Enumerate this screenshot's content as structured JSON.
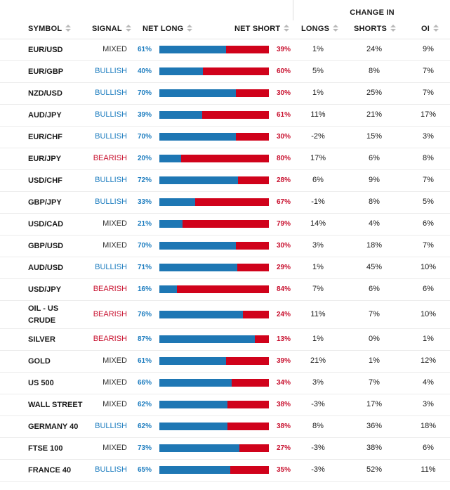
{
  "headers": {
    "change_in": "CHANGE IN",
    "symbol": "SYMBOL",
    "signal": "SIGNAL",
    "net_long": "NET LONG",
    "net_short": "NET SHORT",
    "longs": "LONGS",
    "shorts": "SHORTS",
    "oi": "OI"
  },
  "colors": {
    "long": "#1e77b4",
    "short": "#d0021b",
    "bullish": "#1c7cbf",
    "bearish": "#c8102e",
    "mixed": "#333333"
  },
  "rows": [
    {
      "symbol": "EUR/USD",
      "signal": "MIXED",
      "long_pct": "61%",
      "short_pct": "39%",
      "long_value": 61,
      "longs": "1%",
      "shorts": "24%",
      "oi": "9%"
    },
    {
      "symbol": "EUR/GBP",
      "signal": "BULLISH",
      "long_pct": "40%",
      "short_pct": "60%",
      "long_value": 40,
      "longs": "5%",
      "shorts": "8%",
      "oi": "7%"
    },
    {
      "symbol": "NZD/USD",
      "signal": "BULLISH",
      "long_pct": "70%",
      "short_pct": "30%",
      "long_value": 70,
      "longs": "1%",
      "shorts": "25%",
      "oi": "7%"
    },
    {
      "symbol": "AUD/JPY",
      "signal": "BULLISH",
      "long_pct": "39%",
      "short_pct": "61%",
      "long_value": 39,
      "longs": "11%",
      "shorts": "21%",
      "oi": "17%"
    },
    {
      "symbol": "EUR/CHF",
      "signal": "BULLISH",
      "long_pct": "70%",
      "short_pct": "30%",
      "long_value": 70,
      "longs": "-2%",
      "shorts": "15%",
      "oi": "3%"
    },
    {
      "symbol": "EUR/JPY",
      "signal": "BEARISH",
      "long_pct": "20%",
      "short_pct": "80%",
      "long_value": 20,
      "longs": "17%",
      "shorts": "6%",
      "oi": "8%"
    },
    {
      "symbol": "USD/CHF",
      "signal": "BULLISH",
      "long_pct": "72%",
      "short_pct": "28%",
      "long_value": 72,
      "longs": "6%",
      "shorts": "9%",
      "oi": "7%"
    },
    {
      "symbol": "GBP/JPY",
      "signal": "BULLISH",
      "long_pct": "33%",
      "short_pct": "67%",
      "long_value": 33,
      "longs": "-1%",
      "shorts": "8%",
      "oi": "5%"
    },
    {
      "symbol": "USD/CAD",
      "signal": "MIXED",
      "long_pct": "21%",
      "short_pct": "79%",
      "long_value": 21,
      "longs": "14%",
      "shorts": "4%",
      "oi": "6%"
    },
    {
      "symbol": "GBP/USD",
      "signal": "MIXED",
      "long_pct": "70%",
      "short_pct": "30%",
      "long_value": 70,
      "longs": "3%",
      "shorts": "18%",
      "oi": "7%"
    },
    {
      "symbol": "AUD/USD",
      "signal": "BULLISH",
      "long_pct": "71%",
      "short_pct": "29%",
      "long_value": 71,
      "longs": "1%",
      "shorts": "45%",
      "oi": "10%"
    },
    {
      "symbol": "USD/JPY",
      "signal": "BEARISH",
      "long_pct": "16%",
      "short_pct": "84%",
      "long_value": 16,
      "longs": "7%",
      "shorts": "6%",
      "oi": "6%"
    },
    {
      "symbol": "OIL - US CRUDE",
      "signal": "BEARISH",
      "long_pct": "76%",
      "short_pct": "24%",
      "long_value": 76,
      "longs": "11%",
      "shorts": "7%",
      "oi": "10%"
    },
    {
      "symbol": "SILVER",
      "signal": "BEARISH",
      "long_pct": "87%",
      "short_pct": "13%",
      "long_value": 87,
      "longs": "1%",
      "shorts": "0%",
      "oi": "1%"
    },
    {
      "symbol": "GOLD",
      "signal": "MIXED",
      "long_pct": "61%",
      "short_pct": "39%",
      "long_value": 61,
      "longs": "21%",
      "shorts": "1%",
      "oi": "12%"
    },
    {
      "symbol": "US 500",
      "signal": "MIXED",
      "long_pct": "66%",
      "short_pct": "34%",
      "long_value": 66,
      "longs": "3%",
      "shorts": "7%",
      "oi": "4%"
    },
    {
      "symbol": "WALL STREET",
      "signal": "MIXED",
      "long_pct": "62%",
      "short_pct": "38%",
      "long_value": 62,
      "longs": "-3%",
      "shorts": "17%",
      "oi": "3%"
    },
    {
      "symbol": "GERMANY 40",
      "signal": "BULLISH",
      "long_pct": "62%",
      "short_pct": "38%",
      "long_value": 62,
      "longs": "8%",
      "shorts": "36%",
      "oi": "18%"
    },
    {
      "symbol": "FTSE 100",
      "signal": "MIXED",
      "long_pct": "73%",
      "short_pct": "27%",
      "long_value": 73,
      "longs": "-3%",
      "shorts": "38%",
      "oi": "6%"
    },
    {
      "symbol": "FRANCE 40",
      "signal": "BULLISH",
      "long_pct": "65%",
      "short_pct": "35%",
      "long_value": 65,
      "longs": "-3%",
      "shorts": "52%",
      "oi": "11%"
    }
  ]
}
